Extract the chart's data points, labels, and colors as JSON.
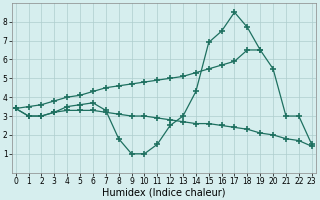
{
  "line1_x": [
    0,
    1,
    2,
    3,
    4,
    5,
    6,
    7,
    8,
    9,
    10,
    11,
    12,
    13,
    14,
    15,
    16,
    17,
    18,
    19
  ],
  "line1_y": [
    3.4,
    3.0,
    3.0,
    3.2,
    3.5,
    3.6,
    3.7,
    3.3,
    1.8,
    1.0,
    1.0,
    1.5,
    2.5,
    3.0,
    4.3,
    6.9,
    7.5,
    8.5,
    7.7,
    6.5
  ],
  "line2_x": [
    0,
    1,
    2,
    3,
    4,
    5,
    6,
    7,
    8,
    9,
    10,
    11,
    12,
    13,
    14,
    15,
    16,
    17,
    18,
    19,
    20,
    21,
    22,
    23
  ],
  "line2_y": [
    3.4,
    3.5,
    3.6,
    3.8,
    4.0,
    4.1,
    4.3,
    4.5,
    4.6,
    4.7,
    4.8,
    4.9,
    5.0,
    5.1,
    5.3,
    5.5,
    5.7,
    5.9,
    6.5,
    6.5,
    5.5,
    3.0,
    3.0,
    1.5
  ],
  "line3_x": [
    0,
    1,
    2,
    3,
    4,
    5,
    6,
    7,
    8,
    9,
    10,
    11,
    12,
    13,
    14,
    15,
    16,
    17,
    18,
    19,
    20,
    21,
    22,
    23
  ],
  "line3_y": [
    3.4,
    3.0,
    3.0,
    3.2,
    3.3,
    3.3,
    3.3,
    3.2,
    3.1,
    3.0,
    3.0,
    2.9,
    2.8,
    2.7,
    2.6,
    2.6,
    2.5,
    2.4,
    2.3,
    2.1,
    2.0,
    1.8,
    1.7,
    1.4
  ],
  "color": "#1e7060",
  "bg_color": "#d6eeee",
  "grid_color": "#aecece",
  "xlabel": "Humidex (Indice chaleur)",
  "xlim": [
    -0.3,
    23.3
  ],
  "ylim": [
    0,
    9
  ],
  "yticks": [
    1,
    2,
    3,
    4,
    5,
    6,
    7,
    8
  ],
  "xticks": [
    0,
    1,
    2,
    3,
    4,
    5,
    6,
    7,
    8,
    9,
    10,
    11,
    12,
    13,
    14,
    15,
    16,
    17,
    18,
    19,
    20,
    21,
    22,
    23
  ],
  "marker": "+",
  "markersize": 4,
  "linewidth": 0.9,
  "xlabel_fontsize": 7,
  "tick_fontsize": 5.5
}
